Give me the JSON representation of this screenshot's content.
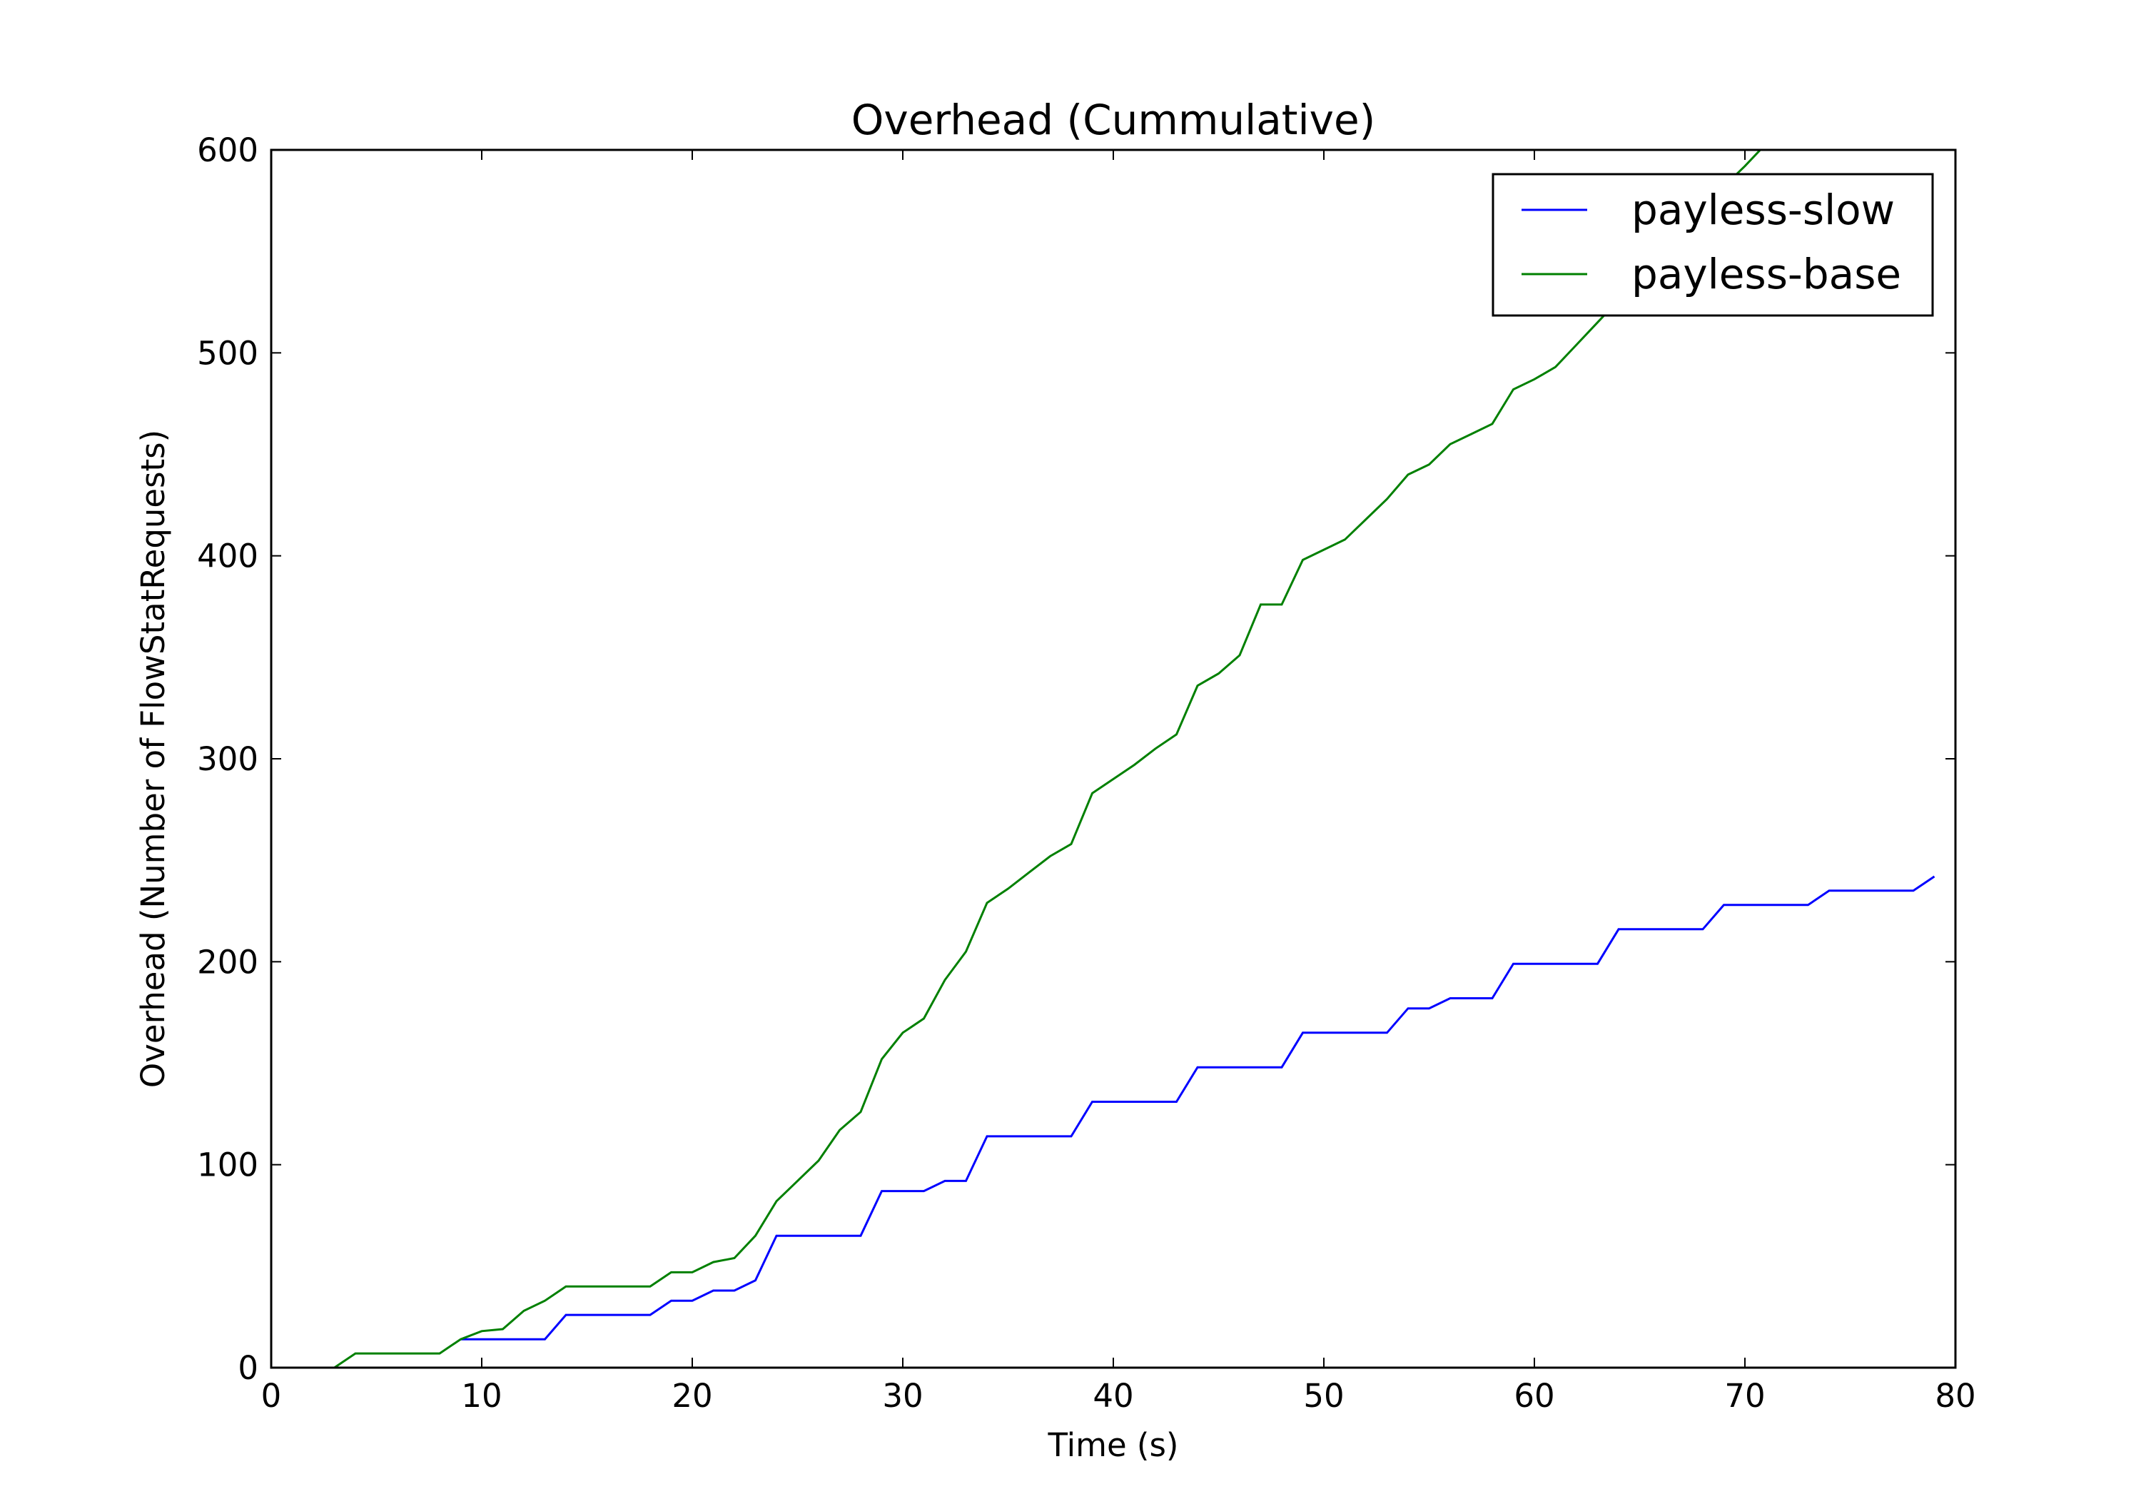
{
  "chart_data": {
    "type": "line",
    "title": "Overhead (Cummulative)",
    "xlabel": "Time (s)",
    "ylabel": "Overhead (Number of FlowStatRequests)",
    "xlim": [
      0,
      80
    ],
    "ylim": [
      0,
      600
    ],
    "xticks": [
      0,
      10,
      20,
      30,
      40,
      50,
      60,
      70,
      80
    ],
    "yticks": [
      0,
      100,
      200,
      300,
      400,
      500,
      600
    ],
    "grid": false,
    "legend_position": "top-right",
    "series": [
      {
        "name": "payless-slow",
        "color": "#0000ff",
        "points": [
          [
            9,
            14
          ],
          [
            13,
            14
          ],
          [
            14,
            26
          ],
          [
            18,
            26
          ],
          [
            19,
            33
          ],
          [
            20,
            33
          ],
          [
            21,
            38
          ],
          [
            22,
            38
          ],
          [
            23,
            43
          ],
          [
            24,
            65
          ],
          [
            28,
            65
          ],
          [
            29,
            87
          ],
          [
            31,
            87
          ],
          [
            32,
            92
          ],
          [
            33,
            92
          ],
          [
            34,
            114
          ],
          [
            38,
            114
          ],
          [
            39,
            131
          ],
          [
            43,
            131
          ],
          [
            44,
            148
          ],
          [
            48,
            148
          ],
          [
            49,
            165
          ],
          [
            53,
            165
          ],
          [
            54,
            177
          ],
          [
            55,
            177
          ],
          [
            56,
            182
          ],
          [
            58,
            182
          ],
          [
            59,
            199
          ],
          [
            63,
            199
          ],
          [
            64,
            216
          ],
          [
            68,
            216
          ],
          [
            69,
            228
          ],
          [
            73,
            228
          ],
          [
            74,
            235
          ],
          [
            78,
            235
          ],
          [
            79,
            242
          ]
        ]
      },
      {
        "name": "payless-base",
        "color": "#008000",
        "points": [
          [
            3,
            0
          ],
          [
            4,
            7
          ],
          [
            8,
            7
          ],
          [
            9,
            14
          ],
          [
            10,
            18
          ],
          [
            11,
            19
          ],
          [
            12,
            28
          ],
          [
            13,
            33
          ],
          [
            14,
            40
          ],
          [
            18,
            40
          ],
          [
            19,
            47
          ],
          [
            20,
            47
          ],
          [
            21,
            52
          ],
          [
            22,
            54
          ],
          [
            23,
            65
          ],
          [
            24,
            82
          ],
          [
            25,
            92
          ],
          [
            26,
            102
          ],
          [
            27,
            117
          ],
          [
            28,
            126
          ],
          [
            29,
            152
          ],
          [
            30,
            165
          ],
          [
            31,
            172
          ],
          [
            32,
            191
          ],
          [
            33,
            205
          ],
          [
            34,
            229
          ],
          [
            35,
            236
          ],
          [
            36,
            244
          ],
          [
            37,
            252
          ],
          [
            38,
            258
          ],
          [
            39,
            283
          ],
          [
            40,
            290
          ],
          [
            41,
            297
          ],
          [
            42,
            305
          ],
          [
            43,
            312
          ],
          [
            44,
            336
          ],
          [
            45,
            342
          ],
          [
            46,
            351
          ],
          [
            47,
            376
          ],
          [
            48,
            376
          ],
          [
            49,
            398
          ],
          [
            50,
            403
          ],
          [
            51,
            408
          ],
          [
            52,
            418
          ],
          [
            53,
            428
          ],
          [
            54,
            440
          ],
          [
            55,
            445
          ],
          [
            56,
            455
          ],
          [
            57,
            460
          ],
          [
            58,
            465
          ],
          [
            59,
            482
          ],
          [
            60,
            487
          ],
          [
            61,
            493
          ],
          [
            62,
            504
          ],
          [
            63,
            515
          ],
          [
            64,
            526
          ],
          [
            65,
            537
          ],
          [
            66,
            548
          ],
          [
            67,
            560
          ],
          [
            68,
            571
          ],
          [
            69,
            582
          ],
          [
            70,
            592
          ],
          [
            71,
            603
          ]
        ]
      }
    ]
  }
}
